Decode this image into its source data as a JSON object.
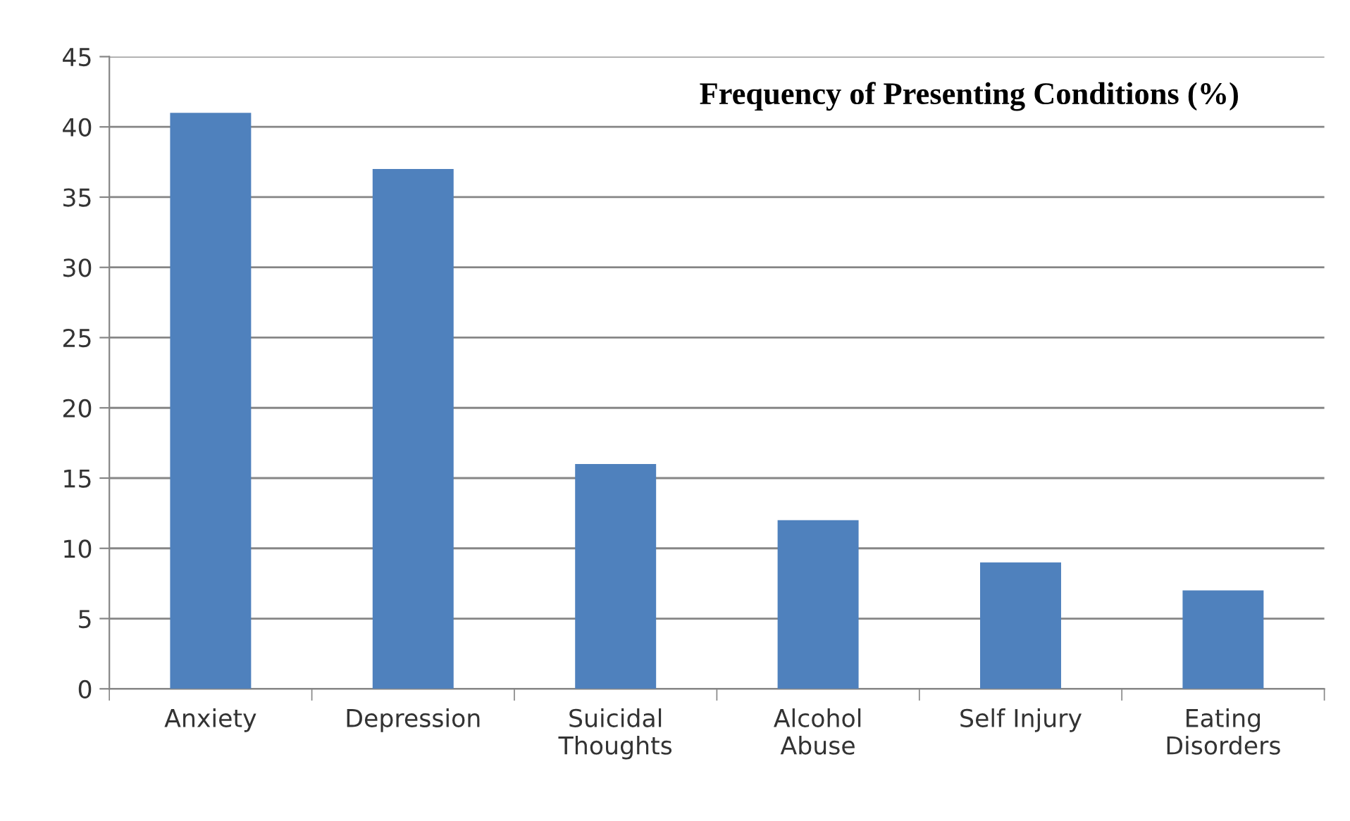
{
  "chart_data": {
    "type": "bar",
    "title": "Frequency of Presenting Conditions (%)",
    "categories": [
      "Anxiety",
      "Depression",
      "Suicidal\nThoughts",
      "Alcohol\nAbuse",
      "Self Injury",
      "Eating\nDisorders"
    ],
    "values": [
      41,
      37,
      16,
      12,
      9,
      7
    ],
    "color": "#4f81bd",
    "ylim": [
      0,
      45
    ],
    "yticks": [
      0,
      5,
      10,
      15,
      20,
      25,
      30,
      35,
      40,
      45
    ],
    "grid": "y",
    "legend": false
  }
}
